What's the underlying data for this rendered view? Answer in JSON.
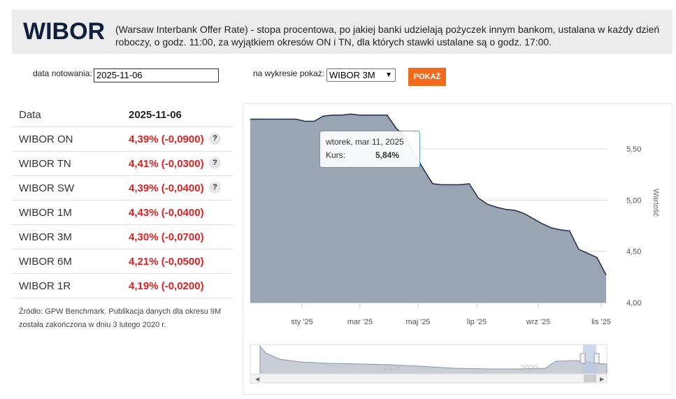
{
  "header": {
    "logo": "WIBOR",
    "description_lines": [
      "(Warsaw Interbank Offer Rate) - stopa procentowa, po jakiej banki udzielają pożyczek innym bankom, ustalana w każdy dzień",
      "roboczy, o godz. 11:00, za wyjątkiem okresów ON i TN, dla których stawki ustalane są o godz. 17:00."
    ]
  },
  "form": {
    "date_label": "data notowania:",
    "date_value": "2025-11-06",
    "chart_label": "na wykresie pokaż:",
    "select_value": "WIBOR 3M",
    "button": "POKAŻ"
  },
  "table": {
    "header": [
      "Data",
      "2025-11-06"
    ],
    "rows": [
      [
        "WIBOR ON",
        "4,39% (-0,0900)",
        "?"
      ],
      [
        "WIBOR TN",
        "4,41% (-0,0300)",
        "?"
      ],
      [
        "WIBOR SW",
        "4,39% (-0,0400)",
        "?"
      ],
      [
        "WIBOR 1M",
        "4,43% (-0,0400)"
      ],
      [
        "WIBOR 3M",
        "4,30% (-0,0700)"
      ],
      [
        "WIBOR 6M",
        "4,21% (-0,0500)"
      ],
      [
        "WIBOR 1R",
        "4,19% (-0,0200)"
      ]
    ]
  },
  "source_lines": [
    "Źródło: GPW Benchmark. Publikacja danych dla okresu 9M",
    "została zakończona w dniu 3 lutego 2020 r."
  ],
  "chart": {
    "type": "area",
    "color": "#9aa5b4",
    "line_color": "#1f2d4a",
    "values": [
      5.79,
      5.79,
      5.79,
      5.79,
      5.79,
      5.79,
      5.77,
      5.77,
      5.82,
      5.83,
      5.83,
      5.84,
      5.83,
      5.83,
      5.83,
      5.83,
      5.7,
      5.62,
      5.45,
      5.3,
      5.16,
      5.15,
      5.15,
      5.15,
      5.16,
      5.02,
      4.96,
      4.93,
      4.91,
      4.9,
      4.87,
      4.82,
      4.77,
      4.73,
      4.71,
      4.7,
      4.52,
      4.48,
      4.44,
      4.27
    ],
    "ylim": [
      4,
      5.93
    ],
    "yticks": [
      {
        "value": 4,
        "label": "4,00"
      },
      {
        "value": 4.5,
        "label": "4,50"
      },
      {
        "value": 5,
        "label": "5,00"
      },
      {
        "value": 5.5,
        "label": "5,50"
      }
    ],
    "xtick_labels": [
      "sty '25",
      "mar '25",
      "maj '25",
      "lip '25",
      "wrz '25",
      "lis '25"
    ],
    "y_axis_label": "Wartość",
    "tooltip": {
      "date": "wtorek, mar 11, 2025",
      "label": "Kurs:",
      "value": "5,84%"
    },
    "navigator_labels": [
      "2018",
      "2020"
    ]
  }
}
